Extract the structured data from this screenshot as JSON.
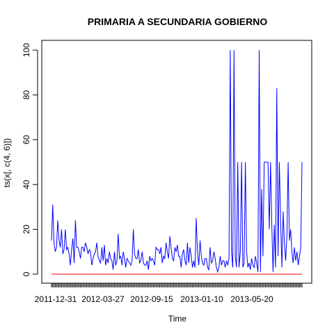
{
  "chart_data": {
    "type": "line",
    "title": "PRIMARIA A SECUNDARIA GOBIERNO",
    "xlabel": "Time",
    "ylabel": "ts(x[, c(4, 6)])",
    "ylim": [
      0,
      100
    ],
    "y_ticks": [
      0,
      20,
      40,
      60,
      80,
      100
    ],
    "x_tick_labels": [
      "2011-12-31",
      "2012-03-27",
      "2012-09-15",
      "2013-01-10",
      "2013-05-20"
    ],
    "grid": false,
    "legend": "none",
    "n_points": 200,
    "series": [
      {
        "color": "#0000ff",
        "values": [
          15,
          31,
          14,
          10,
          12,
          24,
          15,
          12,
          20,
          9,
          11,
          20,
          11,
          12,
          9,
          4,
          11,
          16,
          5,
          24,
          12,
          12,
          10,
          7,
          12,
          12,
          10,
          14,
          12,
          9,
          11,
          10,
          4,
          7,
          9,
          10,
          14,
          8,
          6,
          5,
          12,
          6,
          13,
          4,
          7,
          5,
          10,
          7,
          6,
          2,
          10,
          4,
          6,
          18,
          7,
          8,
          4,
          10,
          7,
          3,
          7,
          6,
          5,
          4,
          6,
          20,
          9,
          7,
          7,
          11,
          5,
          6,
          10,
          5,
          4,
          4,
          6,
          2,
          8,
          6,
          7,
          6,
          4,
          12,
          11,
          11,
          9,
          12,
          5,
          8,
          7,
          14,
          10,
          7,
          17,
          12,
          7,
          6,
          12,
          10,
          13,
          8,
          8,
          3,
          9,
          11,
          6,
          4,
          14,
          5,
          12,
          8,
          3,
          6,
          3,
          25,
          10,
          4,
          15,
          8,
          5,
          4,
          7,
          7,
          3,
          2,
          12,
          5,
          6,
          10,
          7,
          3,
          1,
          3,
          8,
          4,
          6,
          6,
          3,
          6,
          4,
          7,
          100,
          10,
          3,
          100,
          8,
          3,
          50,
          3,
          10,
          50,
          3,
          5,
          50,
          10,
          3,
          5,
          2,
          7,
          4,
          3,
          8,
          5,
          1,
          100,
          1,
          38,
          8,
          50,
          50,
          50,
          50,
          20,
          50,
          22,
          1,
          22,
          3,
          83,
          8,
          50,
          25,
          3,
          28,
          14,
          6,
          17,
          50,
          15,
          20,
          10,
          5,
          12,
          6,
          10,
          4,
          8,
          12,
          50
        ]
      },
      {
        "color": "#ff0000",
        "values": "all 0"
      }
    ]
  }
}
